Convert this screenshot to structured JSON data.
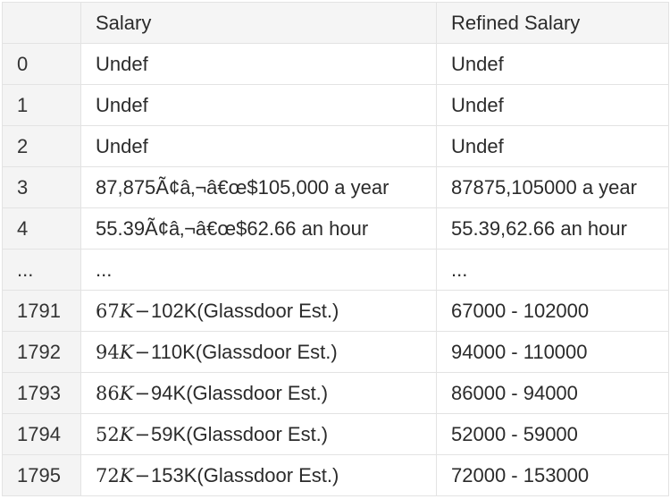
{
  "table": {
    "headers": [
      "",
      "Salary",
      "Refined Salary"
    ],
    "rows": [
      {
        "index": "0",
        "salary": "Undef",
        "refined": "Undef"
      },
      {
        "index": "1",
        "salary": "Undef",
        "refined": "Undef"
      },
      {
        "index": "2",
        "salary": "Undef",
        "refined": "Undef"
      },
      {
        "index": "3",
        "salary": "87,875Ã¢â‚¬â€œ$105,000 a year",
        "refined": "87875,105000 a year"
      },
      {
        "index": "4",
        "salary": "55.39Ã¢â‚¬â€œ$62.66 an hour",
        "refined": "55.39,62.66 an hour"
      },
      {
        "index": "...",
        "salary": "...",
        "refined": "..."
      },
      {
        "index": "1791",
        "salary_math_num": "67",
        "salary_math_var": "K",
        "salary_math_op": "−",
        "salary_rest": "102K(Glassdoor Est.)",
        "refined": "67000 - 102000"
      },
      {
        "index": "1792",
        "salary_math_num": "94",
        "salary_math_var": "K",
        "salary_math_op": "−",
        "salary_rest": "110K(Glassdoor Est.)",
        "refined": "94000 - 110000"
      },
      {
        "index": "1793",
        "salary_math_num": "86",
        "salary_math_var": "K",
        "salary_math_op": "−",
        "salary_rest": "94K(Glassdoor Est.)",
        "refined": "86000 - 94000"
      },
      {
        "index": "1794",
        "salary_math_num": "52",
        "salary_math_var": "K",
        "salary_math_op": "−",
        "salary_rest": "59K(Glassdoor Est.)",
        "refined": "52000 - 59000"
      },
      {
        "index": "1795",
        "salary_math_num": "72",
        "salary_math_var": "K",
        "salary_math_op": "−",
        "salary_rest": "153K(Glassdoor Est.)",
        "refined": "72000 - 153000"
      }
    ]
  }
}
